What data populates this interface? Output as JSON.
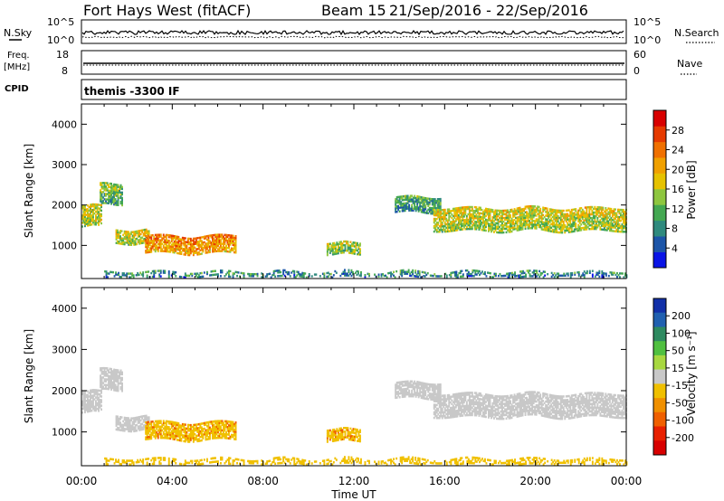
{
  "header": {
    "title": "Fort Hays West (fitACF)",
    "beam": "Beam 15",
    "dates": "21/Sep/2016 - 22/Sep/2016"
  },
  "noise_panel": {
    "left_label": "N.Sky",
    "right_label": "N.Search",
    "left_ticks": [
      "10^5",
      "10^0"
    ],
    "right_ticks": [
      "10^5",
      "10^0"
    ]
  },
  "freq_panel": {
    "left_label_1": "Freq.",
    "left_label_2": "[MHz]",
    "right_label": "Nave",
    "left_ticks": [
      "18",
      "8"
    ],
    "right_ticks": [
      "60",
      "0"
    ]
  },
  "cpid_panel": {
    "label": "CPID",
    "value": "themis -3300 IF"
  },
  "colors": {
    "power_scale": [
      "#0a14e6",
      "#1c55a8",
      "#2f8a7e",
      "#44a852",
      "#8ec63f",
      "#e6c200",
      "#f0a000",
      "#f07000",
      "#e63a00",
      "#d80000"
    ],
    "velocity_scale": [
      "#1230a8",
      "#2060b0",
      "#2e8a60",
      "#50c040",
      "#a8d840",
      "#c8c8c8",
      "#f0c000",
      "#f09000",
      "#f06000",
      "#e82000",
      "#d80000"
    ]
  },
  "chart_data": [
    {
      "type": "heatmap",
      "parameter": "power",
      "ylabel": "Slant Range [km]",
      "xlim": [
        0,
        24
      ],
      "ylim": [
        180,
        4500
      ],
      "yticks": [
        "1000",
        "2000",
        "3000",
        "4000"
      ],
      "colorbar_label": "Power [dB]",
      "colorbar_ticks": [
        "4",
        "8",
        "12",
        "16",
        "20",
        "24",
        "28"
      ],
      "colorbar_range": [
        0,
        32
      ],
      "echo_regions": [
        {
          "t_start": 0.0,
          "t_end": 0.9,
          "range_lo": 1450,
          "range_hi": 1950,
          "value": 14
        },
        {
          "t_start": 0.8,
          "t_end": 1.8,
          "range_lo": 2000,
          "range_hi": 2500,
          "value": 10
        },
        {
          "t_start": 1.5,
          "t_end": 3.0,
          "range_lo": 1050,
          "range_hi": 1400,
          "value": 14
        },
        {
          "t_start": 2.8,
          "t_end": 6.8,
          "range_lo": 800,
          "range_hi": 1250,
          "value": 20
        },
        {
          "t_start": 10.8,
          "t_end": 12.3,
          "range_lo": 750,
          "range_hi": 1050,
          "value": 12
        },
        {
          "t_start": 13.8,
          "t_end": 15.8,
          "range_lo": 1800,
          "range_hi": 2200,
          "value": 8
        },
        {
          "t_start": 15.5,
          "t_end": 24.0,
          "range_lo": 1350,
          "range_hi": 1900,
          "value": 14
        },
        {
          "t_start": 1.0,
          "t_end": 24.0,
          "range_lo": 180,
          "range_hi": 330,
          "value": 6
        }
      ]
    },
    {
      "type": "heatmap",
      "parameter": "velocity",
      "xlabel": "Time UT",
      "ylabel": "Slant Range [km]",
      "xlim": [
        0,
        24
      ],
      "ylim": [
        180,
        4500
      ],
      "xticks": [
        "00:00",
        "04:00",
        "08:00",
        "12:00",
        "16:00",
        "20:00",
        "00:00"
      ],
      "yticks": [
        "1000",
        "2000",
        "3000",
        "4000"
      ],
      "colorbar_label": "Velocity [m s⁻¹]",
      "colorbar_ticks": [
        "200",
        "100",
        "50",
        "15",
        "-15",
        "-50",
        "-100",
        "-200"
      ],
      "echo_regions": [
        {
          "t_start": 0.0,
          "t_end": 0.9,
          "range_lo": 1450,
          "range_hi": 1950,
          "value": 0
        },
        {
          "t_start": 0.8,
          "t_end": 1.8,
          "range_lo": 2000,
          "range_hi": 2500,
          "value": 0
        },
        {
          "t_start": 1.5,
          "t_end": 3.0,
          "range_lo": 1050,
          "range_hi": 1400,
          "value": 0
        },
        {
          "t_start": 2.8,
          "t_end": 6.8,
          "range_lo": 800,
          "range_hi": 1250,
          "value": -40
        },
        {
          "t_start": 10.8,
          "t_end": 12.3,
          "range_lo": 750,
          "range_hi": 1050,
          "value": -40
        },
        {
          "t_start": 13.8,
          "t_end": 15.8,
          "range_lo": 1800,
          "range_hi": 2200,
          "value": 0
        },
        {
          "t_start": 15.5,
          "t_end": 24.0,
          "range_lo": 1350,
          "range_hi": 1900,
          "value": 0
        },
        {
          "t_start": 1.0,
          "t_end": 24.0,
          "range_lo": 180,
          "range_hi": 330,
          "value": -30
        }
      ]
    }
  ]
}
